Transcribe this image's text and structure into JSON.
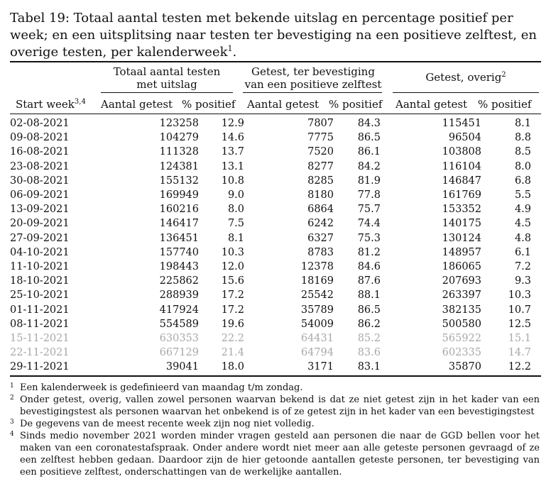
{
  "caption": {
    "text": "Tabel 19: Totaal aantal testen met bekende uitslag en percentage positief per week; en een uitsplitsing naar testen ter bevestiging na een positieve zelftest, en overige testen, per kalenderweek",
    "sup": "1"
  },
  "groups": {
    "total_line1": "Totaal aantal testen",
    "total_line2": "met uitslag",
    "confirm_line1": "Getest, ter bevestiging",
    "confirm_line2": "van een positieve zelftest",
    "other": "Getest, overig",
    "other_sup": "2"
  },
  "columns": {
    "week": "Start week",
    "week_sup": "3,4",
    "count": "Aantal getest",
    "pct": "% positief"
  },
  "rows": [
    {
      "week": "02-08-2021",
      "t_n": "123258",
      "t_p": "12.9",
      "c_n": "7807",
      "c_p": "84.3",
      "o_n": "115451",
      "o_p": "8.1"
    },
    {
      "week": "09-08-2021",
      "t_n": "104279",
      "t_p": "14.6",
      "c_n": "7775",
      "c_p": "86.5",
      "o_n": "96504",
      "o_p": "8.8"
    },
    {
      "week": "16-08-2021",
      "t_n": "111328",
      "t_p": "13.7",
      "c_n": "7520",
      "c_p": "86.1",
      "o_n": "103808",
      "o_p": "8.5"
    },
    {
      "week": "23-08-2021",
      "t_n": "124381",
      "t_p": "13.1",
      "c_n": "8277",
      "c_p": "84.2",
      "o_n": "116104",
      "o_p": "8.0"
    },
    {
      "week": "30-08-2021",
      "t_n": "155132",
      "t_p": "10.8",
      "c_n": "8285",
      "c_p": "81.9",
      "o_n": "146847",
      "o_p": "6.8"
    },
    {
      "week": "06-09-2021",
      "t_n": "169949",
      "t_p": "9.0",
      "c_n": "8180",
      "c_p": "77.8",
      "o_n": "161769",
      "o_p": "5.5"
    },
    {
      "week": "13-09-2021",
      "t_n": "160216",
      "t_p": "8.0",
      "c_n": "6864",
      "c_p": "75.7",
      "o_n": "153352",
      "o_p": "4.9"
    },
    {
      "week": "20-09-2021",
      "t_n": "146417",
      "t_p": "7.5",
      "c_n": "6242",
      "c_p": "74.4",
      "o_n": "140175",
      "o_p": "4.5"
    },
    {
      "week": "27-09-2021",
      "t_n": "136451",
      "t_p": "8.1",
      "c_n": "6327",
      "c_p": "75.3",
      "o_n": "130124",
      "o_p": "4.8"
    },
    {
      "week": "04-10-2021",
      "t_n": "157740",
      "t_p": "10.3",
      "c_n": "8783",
      "c_p": "81.2",
      "o_n": "148957",
      "o_p": "6.1"
    },
    {
      "week": "11-10-2021",
      "t_n": "198443",
      "t_p": "12.0",
      "c_n": "12378",
      "c_p": "84.6",
      "o_n": "186065",
      "o_p": "7.2"
    },
    {
      "week": "18-10-2021",
      "t_n": "225862",
      "t_p": "15.6",
      "c_n": "18169",
      "c_p": "87.6",
      "o_n": "207693",
      "o_p": "9.3"
    },
    {
      "week": "25-10-2021",
      "t_n": "288939",
      "t_p": "17.2",
      "c_n": "25542",
      "c_p": "88.1",
      "o_n": "263397",
      "o_p": "10.3"
    },
    {
      "week": "01-11-2021",
      "t_n": "417924",
      "t_p": "17.2",
      "c_n": "35789",
      "c_p": "86.5",
      "o_n": "382135",
      "o_p": "10.7"
    },
    {
      "week": "08-11-2021",
      "t_n": "554589",
      "t_p": "19.6",
      "c_n": "54009",
      "c_p": "86.2",
      "o_n": "500580",
      "o_p": "12.5"
    },
    {
      "week": "15-11-2021",
      "t_n": "630353",
      "t_p": "22.2",
      "c_n": "64431",
      "c_p": "85.2",
      "o_n": "565922",
      "o_p": "15.1",
      "grey": true
    },
    {
      "week": "22-11-2021",
      "t_n": "667129",
      "t_p": "21.4",
      "c_n": "64794",
      "c_p": "83.6",
      "o_n": "602335",
      "o_p": "14.7",
      "grey": true
    },
    {
      "week": "29-11-2021",
      "t_n": "39041",
      "t_p": "18.0",
      "c_n": "3171",
      "c_p": "83.1",
      "o_n": "35870",
      "o_p": "12.2"
    }
  ],
  "footnotes": [
    {
      "mark": "1",
      "text": "Een kalenderweek is gedefinieerd van maandag t/m zondag."
    },
    {
      "mark": "2",
      "text": "Onder getest, overig, vallen zowel personen waarvan bekend is dat ze niet getest zijn in het kader van een bevestigingstest als personen waarvan het onbekend is of ze getest zijn in het kader van een bevestigingstest"
    },
    {
      "mark": "3",
      "text": "De gegevens van de meest recente week zijn nog niet volledig."
    },
    {
      "mark": "4",
      "text": "Sinds medio november 2021 worden minder vragen gesteld aan personen die naar de GGD bellen voor het maken van een coronatestafspraak. Onder andere wordt niet meer aan alle geteste personen gevraagd of ze een zelftest hebben gedaan. Daardoor zijn de hier getoonde aantallen geteste personen, ter bevestiging van een positieve zelftest, onderschattingen van de werkelijke aantallen."
    }
  ],
  "colors": {
    "text": "#111111",
    "incomplete_row": "#a8a8a8"
  }
}
